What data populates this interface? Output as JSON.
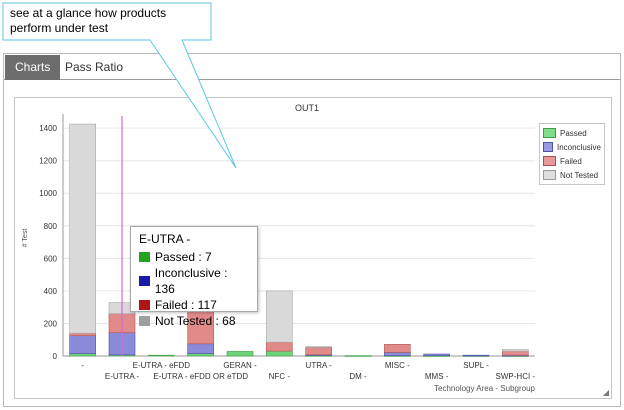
{
  "callout": {
    "text": "see at a glance how products perform under test"
  },
  "tabs": [
    {
      "label": "Charts",
      "active": true
    },
    {
      "label": "Pass Ratio",
      "active": false
    }
  ],
  "chart_data": {
    "type": "bar",
    "title": "OUT1",
    "xlabel": "Technology Area - Subgroup",
    "ylabel": "# Test",
    "ylim": [
      0,
      1450
    ],
    "yticks": [
      0,
      200,
      400,
      600,
      800,
      1000,
      1200,
      1400
    ],
    "grid": true,
    "legend_placement": "top-right",
    "categories": [
      "-",
      "E-UTRA -",
      "E-UTRA - eFDD",
      "E-UTRA - eFDD OR eTDD",
      "GERAN -",
      "NFC -",
      "UTRA -",
      "DM -",
      "MISC -",
      "MMS -",
      "SUPL -",
      "SWP-HCI -"
    ],
    "tick_labels": [
      "-",
      "E-UTRA -",
      "E-UTRA - eFDD",
      "E-UTRA - eFDD OR eTDD",
      "GERAN -",
      "NFC -",
      "UTRA -",
      "DM -",
      "MISC -",
      "MMS -",
      "SUPL -",
      "SWP-HCI -"
    ],
    "series": [
      {
        "name": "Passed",
        "color": "#6fd37a",
        "values": [
          15,
          7,
          5,
          15,
          28,
          30,
          3,
          2,
          2,
          2,
          2,
          2
        ]
      },
      {
        "name": "Inconclusive",
        "color": "#8a8ad8",
        "values": [
          110,
          136,
          0,
          60,
          0,
          0,
          5,
          0,
          20,
          10,
          3,
          3
        ]
      },
      {
        "name": "Failed",
        "color": "#e08a8a",
        "values": [
          15,
          117,
          0,
          220,
          0,
          55,
          45,
          0,
          50,
          0,
          0,
          25
        ]
      },
      {
        "name": "Not Tested",
        "color": "#d9d9d9",
        "values": [
          1285,
          68,
          0,
          0,
          0,
          315,
          5,
          0,
          0,
          0,
          0,
          10
        ]
      }
    ],
    "cursor_category": "E-UTRA -"
  },
  "tooltip": {
    "title": "E-UTRA -",
    "rows": [
      {
        "label": "Passed : 7",
        "color": "#22a322"
      },
      {
        "label": "Inconclusive : 136",
        "color": "#1a1aa8"
      },
      {
        "label": "Failed : 117",
        "color": "#b01515"
      },
      {
        "label": "Not Tested : 68",
        "color": "#9e9e9e"
      }
    ]
  },
  "legend": [
    {
      "label": "Passed",
      "fill": "#7fdd8a",
      "stroke": "#3e9e48"
    },
    {
      "label": "Inconclusive",
      "fill": "#9a9ae0",
      "stroke": "#5050a8"
    },
    {
      "label": "Failed",
      "fill": "#e89a9a",
      "stroke": "#a85050"
    },
    {
      "label": "Not Tested",
      "fill": "#dedede",
      "stroke": "#9a9a9a"
    }
  ],
  "grip": "◢"
}
